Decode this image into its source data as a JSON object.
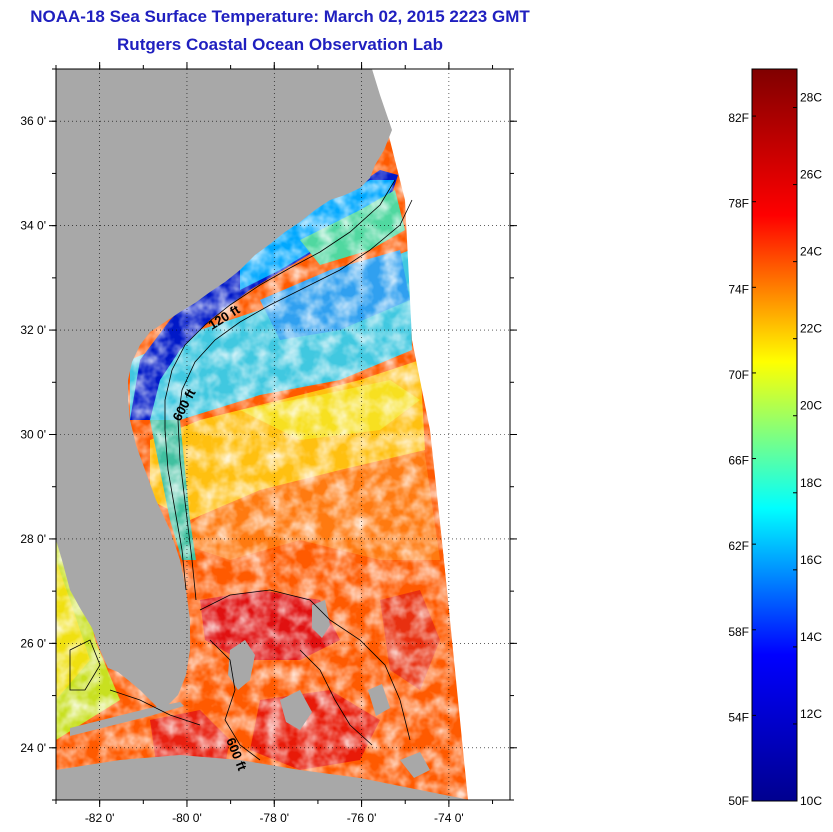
{
  "title": "NOAA-18 Sea Surface Temperature:  March 02, 2015 2223 GMT",
  "subtitle": "Rutgers Coastal Ocean Observation Lab",
  "map": {
    "lon_range": [
      -83,
      -72.6
    ],
    "lat_range": [
      23,
      37
    ],
    "x_ticks": [
      {
        "value": -82,
        "label": "-82 0'"
      },
      {
        "value": -80,
        "label": "-80 0'"
      },
      {
        "value": -78,
        "label": "-78 0'"
      },
      {
        "value": -76,
        "label": "-76 0'"
      },
      {
        "value": -74,
        "label": "-74 0'"
      }
    ],
    "y_ticks": [
      {
        "value": 36,
        "label": "36 0'"
      },
      {
        "value": 34,
        "label": "34 0'"
      },
      {
        "value": 32,
        "label": "32 0'"
      },
      {
        "value": 30,
        "label": "30 0'"
      },
      {
        "value": 28,
        "label": "28 0'"
      },
      {
        "value": 26,
        "label": "26 0'"
      },
      {
        "value": 24,
        "label": "24 0'"
      }
    ],
    "isobath_labels": [
      "120 ft",
      "600 ft",
      "600 ft"
    ],
    "colors": {
      "land": "#a8a8a8",
      "cloud": "#ffffff",
      "frame": "#000000"
    }
  },
  "colorbar": {
    "min_c": 10,
    "max_c": 29,
    "celsius_ticks": [
      {
        "value": 10,
        "label": "10C"
      },
      {
        "value": 12,
        "label": "12C"
      },
      {
        "value": 14,
        "label": "14C"
      },
      {
        "value": 16,
        "label": "16C"
      },
      {
        "value": 18,
        "label": "18C"
      },
      {
        "value": 20,
        "label": "20C"
      },
      {
        "value": 22,
        "label": "22C"
      },
      {
        "value": 24,
        "label": "24C"
      },
      {
        "value": 26,
        "label": "26C"
      },
      {
        "value": 28,
        "label": "28C"
      }
    ],
    "fahrenheit_ticks": [
      {
        "value": 50,
        "label": "50F"
      },
      {
        "value": 54,
        "label": "54F"
      },
      {
        "value": 58,
        "label": "58F"
      },
      {
        "value": 62,
        "label": "62F"
      },
      {
        "value": 66,
        "label": "66F"
      },
      {
        "value": 70,
        "label": "70F"
      },
      {
        "value": 74,
        "label": "74F"
      },
      {
        "value": 78,
        "label": "78F"
      },
      {
        "value": 82,
        "label": "82F"
      }
    ],
    "colormap": [
      "#00008f",
      "#0000ff",
      "#00ffff",
      "#ffff00",
      "#ff0000",
      "#800000"
    ]
  }
}
